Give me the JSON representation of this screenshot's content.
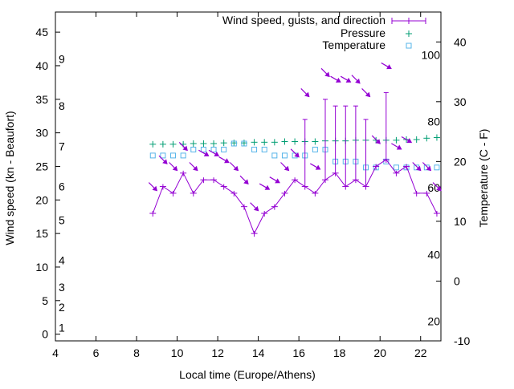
{
  "chart_data": {
    "type": "line",
    "xlabel": "Local time (Europe/Athens)",
    "ylabel": "Wind speed (kn - Beaufort)",
    "y2label": "Temperature (C - F)",
    "xlim": [
      4,
      23
    ],
    "ylim": [
      -1,
      48
    ],
    "y2lim": [
      -10,
      45
    ],
    "xticks": [
      4,
      6,
      8,
      10,
      12,
      14,
      16,
      18,
      20,
      22
    ],
    "yticks": [
      0,
      5,
      10,
      15,
      20,
      25,
      30,
      35,
      40,
      45
    ],
    "y2ticks": [
      -10,
      0,
      10,
      20,
      30,
      40
    ],
    "beaufort_labels": [
      {
        "text": "1",
        "kn": 1
      },
      {
        "text": "2",
        "kn": 4
      },
      {
        "text": "3",
        "kn": 7
      },
      {
        "text": "4",
        "kn": 11
      },
      {
        "text": "5",
        "kn": 17
      },
      {
        "text": "6",
        "kn": 22
      },
      {
        "text": "7",
        "kn": 28
      },
      {
        "text": "8",
        "kn": 34
      },
      {
        "text": "9",
        "kn": 41
      }
    ],
    "fahrenheit_labels": [
      {
        "text": "20",
        "celsius": -6.7
      },
      {
        "text": "40",
        "celsius": 4.4
      },
      {
        "text": "60",
        "celsius": 15.6
      },
      {
        "text": "80",
        "celsius": 26.7
      },
      {
        "text": "100",
        "celsius": 37.8
      }
    ],
    "series": [
      {
        "name": "Wind speed, gusts, and direction",
        "color": "#9400d3",
        "x": [
          8.8,
          9.3,
          9.8,
          10.3,
          10.8,
          11.3,
          11.8,
          12.3,
          12.8,
          13.3,
          13.8,
          14.3,
          14.8,
          15.3,
          15.8,
          16.3,
          16.8,
          17.3,
          17.8,
          18.3,
          18.8,
          19.3,
          19.8,
          20.3,
          20.8,
          21.3,
          21.8,
          22.3,
          22.8
        ],
        "speed": [
          18,
          22,
          21,
          24,
          21,
          23,
          23,
          22,
          21,
          19,
          15,
          18,
          19,
          21,
          23,
          22,
          21,
          23,
          24,
          22,
          23,
          22,
          25,
          26,
          24,
          25,
          21,
          21,
          18
        ],
        "gust": [
          null,
          null,
          null,
          null,
          null,
          null,
          null,
          null,
          null,
          null,
          null,
          null,
          null,
          null,
          null,
          32,
          null,
          35,
          34,
          34,
          34,
          32,
          null,
          36,
          null,
          null,
          null,
          null,
          null
        ],
        "direction_deg": [
          315,
          315,
          315,
          315,
          315,
          300,
          300,
          300,
          315,
          315,
          315,
          300,
          300,
          315,
          315,
          315,
          300,
          315,
          300,
          300,
          315,
          315,
          315,
          300,
          300,
          300,
          315,
          315,
          315
        ]
      },
      {
        "name": "Pressure",
        "color": "#009e73",
        "x": [
          8.8,
          9.3,
          9.8,
          10.3,
          10.8,
          11.3,
          11.8,
          12.3,
          12.8,
          13.3,
          13.8,
          14.3,
          14.8,
          15.3,
          15.8,
          16.3,
          16.8,
          17.3,
          17.8,
          18.3,
          18.8,
          19.3,
          19.8,
          20.3,
          20.8,
          21.3,
          21.8,
          22.3,
          22.8
        ],
        "y": [
          28.3,
          28.3,
          28.3,
          28.3,
          28.4,
          28.4,
          28.4,
          28.5,
          28.5,
          28.5,
          28.6,
          28.6,
          28.6,
          28.7,
          28.7,
          28.7,
          28.7,
          28.8,
          28.8,
          28.8,
          28.9,
          28.9,
          28.9,
          28.9,
          28.9,
          29.0,
          29.0,
          29.2,
          29.3
        ]
      },
      {
        "name": "Temperature",
        "color": "#56b4e9",
        "x": [
          8.8,
          9.3,
          9.8,
          10.3,
          10.8,
          11.3,
          11.8,
          12.3,
          12.8,
          13.3,
          13.8,
          14.3,
          14.8,
          15.3,
          15.8,
          16.3,
          16.8,
          17.3,
          17.8,
          18.3,
          18.8,
          19.3,
          19.8,
          20.3,
          20.8,
          21.3,
          21.8,
          22.3,
          22.8
        ],
        "y": [
          21,
          21,
          21,
          21,
          22,
          22,
          22,
          22,
          23,
          23,
          22,
          22,
          21,
          21,
          21,
          21,
          22,
          22,
          20,
          20,
          20,
          19,
          19,
          20,
          19,
          19,
          19,
          19,
          19
        ]
      }
    ]
  }
}
